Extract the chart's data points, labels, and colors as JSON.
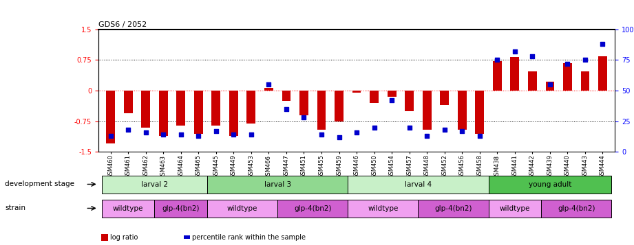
{
  "title": "GDS6 / 2052",
  "samples": [
    "GSM460",
    "GSM461",
    "GSM462",
    "GSM463",
    "GSM464",
    "GSM465",
    "GSM445",
    "GSM449",
    "GSM453",
    "GSM466",
    "GSM447",
    "GSM451",
    "GSM455",
    "GSM459",
    "GSM446",
    "GSM450",
    "GSM454",
    "GSM457",
    "GSM448",
    "GSM452",
    "GSM456",
    "GSM458",
    "GSM438",
    "GSM441",
    "GSM442",
    "GSM439",
    "GSM440",
    "GSM443",
    "GSM444"
  ],
  "log_ratios": [
    -1.3,
    -0.55,
    -0.9,
    -1.1,
    -0.85,
    -1.05,
    -0.85,
    -1.1,
    -0.8,
    0.07,
    -0.25,
    -0.6,
    -0.95,
    -0.75,
    -0.05,
    -0.3,
    -0.15,
    -0.5,
    -0.95,
    -0.35,
    -0.95,
    -1.05,
    0.72,
    0.82,
    0.48,
    0.22,
    0.68,
    0.48,
    0.85
  ],
  "percentile_ranks": [
    13,
    18,
    16,
    14,
    14,
    13,
    17,
    14,
    14,
    55,
    35,
    28,
    14,
    12,
    16,
    20,
    42,
    20,
    13,
    18,
    17,
    13,
    75,
    82,
    78,
    55,
    72,
    75,
    88
  ],
  "dev_stages": [
    {
      "label": "larval 2",
      "start": 0,
      "end": 5,
      "color": "#c8f0c8"
    },
    {
      "label": "larval 3",
      "start": 6,
      "end": 13,
      "color": "#90d890"
    },
    {
      "label": "larval 4",
      "start": 14,
      "end": 21,
      "color": "#c8f0c8"
    },
    {
      "label": "young adult",
      "start": 22,
      "end": 28,
      "color": "#50c050"
    }
  ],
  "strains": [
    {
      "label": "wildtype",
      "start": 0,
      "end": 2,
      "color": "#f0a0f0"
    },
    {
      "label": "glp-4(bn2)",
      "start": 3,
      "end": 5,
      "color": "#d060d0"
    },
    {
      "label": "wildtype",
      "start": 6,
      "end": 9,
      "color": "#f0a0f0"
    },
    {
      "label": "glp-4(bn2)",
      "start": 10,
      "end": 13,
      "color": "#d060d0"
    },
    {
      "label": "wildtype",
      "start": 14,
      "end": 17,
      "color": "#f0a0f0"
    },
    {
      "label": "glp-4(bn2)",
      "start": 18,
      "end": 21,
      "color": "#d060d0"
    },
    {
      "label": "wildtype",
      "start": 22,
      "end": 24,
      "color": "#f0a0f0"
    },
    {
      "label": "glp-4(bn2)",
      "start": 25,
      "end": 28,
      "color": "#d060d0"
    }
  ],
  "bar_color": "#cc0000",
  "dot_color": "#0000cc",
  "ylim_left": [
    -1.5,
    1.5
  ],
  "ylim_right": [
    0,
    100
  ],
  "yticks_left": [
    -1.5,
    -0.75,
    0,
    0.75,
    1.5
  ],
  "yticks_right": [
    0,
    25,
    50,
    75,
    100
  ],
  "hlines_dotted": [
    -0.75,
    0.75
  ],
  "hline_zero": 0,
  "legend_log_ratio": "log ratio",
  "legend_percentile": "percentile rank within the sample",
  "label_dev_stage": "development stage",
  "label_strain": "strain"
}
